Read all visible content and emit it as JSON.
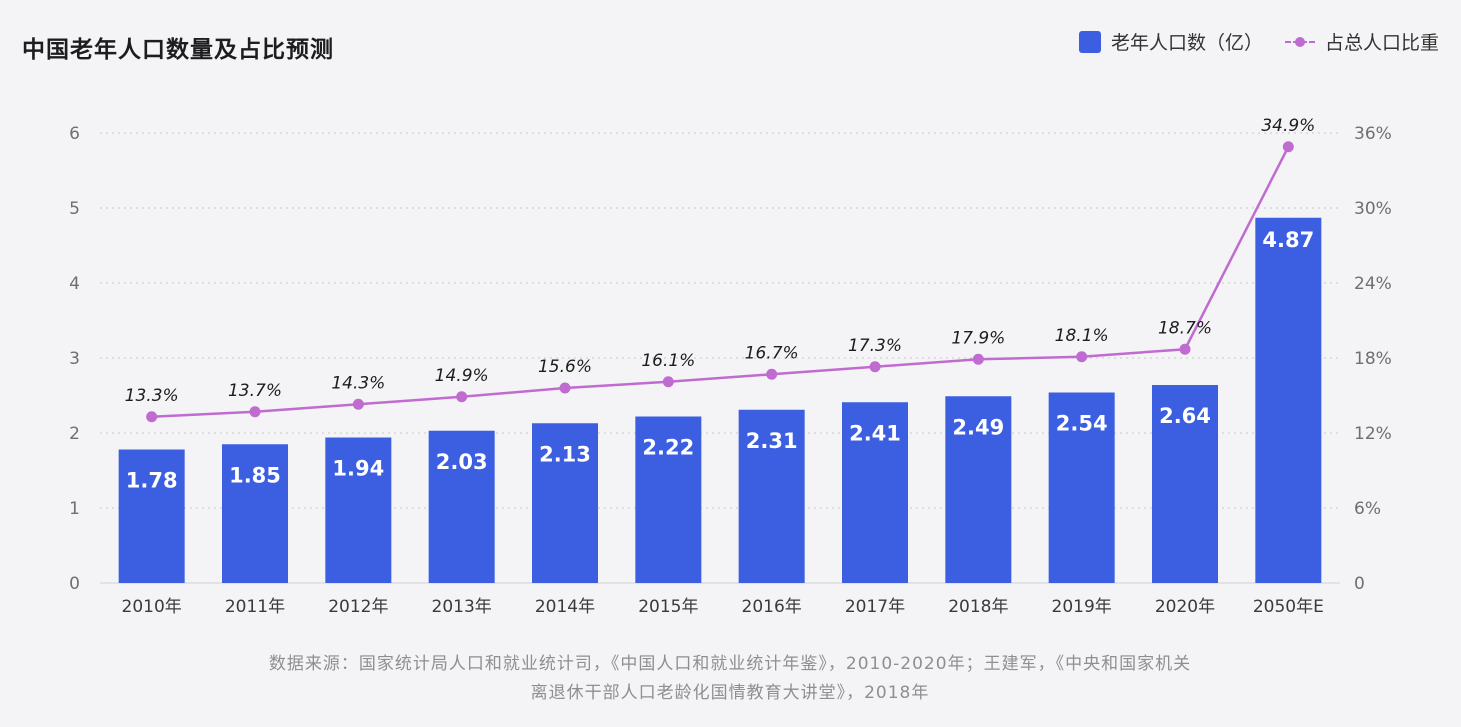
{
  "chart_data": {
    "type": "bar",
    "title": "中国老年人口数量及占比预测",
    "categories": [
      "2010年",
      "2011年",
      "2012年",
      "2013年",
      "2014年",
      "2015年",
      "2016年",
      "2017年",
      "2018年",
      "2019年",
      "2020年",
      "2050年E"
    ],
    "series": [
      {
        "name": "老年人口数（亿）",
        "type": "bar",
        "axis": "left",
        "values": [
          1.78,
          1.85,
          1.94,
          2.03,
          2.13,
          2.22,
          2.31,
          2.41,
          2.49,
          2.54,
          2.64,
          4.87
        ],
        "labels": [
          "1.78",
          "1.85",
          "1.94",
          "2.03",
          "2.13",
          "2.22",
          "2.31",
          "2.41",
          "2.49",
          "2.54",
          "2.64",
          "4.87"
        ],
        "color": "#3b5fe0"
      },
      {
        "name": "占总人口比重",
        "type": "line",
        "axis": "right",
        "values": [
          13.3,
          13.7,
          14.3,
          14.9,
          15.6,
          16.1,
          16.7,
          17.3,
          17.9,
          18.1,
          18.7,
          34.9
        ],
        "labels": [
          "13.3%",
          "13.7%",
          "14.3%",
          "14.9%",
          "15.6%",
          "16.1%",
          "16.7%",
          "17.3%",
          "17.9%",
          "18.1%",
          "18.7%",
          "34.9%"
        ],
        "color": "#c06bd0"
      }
    ],
    "y_left": {
      "lim": [
        0,
        6
      ],
      "ticks": [
        "0",
        "1",
        "2",
        "3",
        "4",
        "5",
        "6"
      ]
    },
    "y_right": {
      "lim": [
        0,
        36
      ],
      "ticks": [
        "0",
        "6%",
        "12%",
        "18%",
        "24%",
        "30%",
        "36%"
      ]
    },
    "grid": "dotted horizontal",
    "legend_position": "top-right"
  },
  "source_note": {
    "line1": "数据来源：国家统计局人口和就业统计司，《中国人口和就业统计年鉴》，2010-2020年；王建军，《中央和国家机关",
    "line2": "离退休干部人口老龄化国情教育大讲堂》，2018年"
  }
}
